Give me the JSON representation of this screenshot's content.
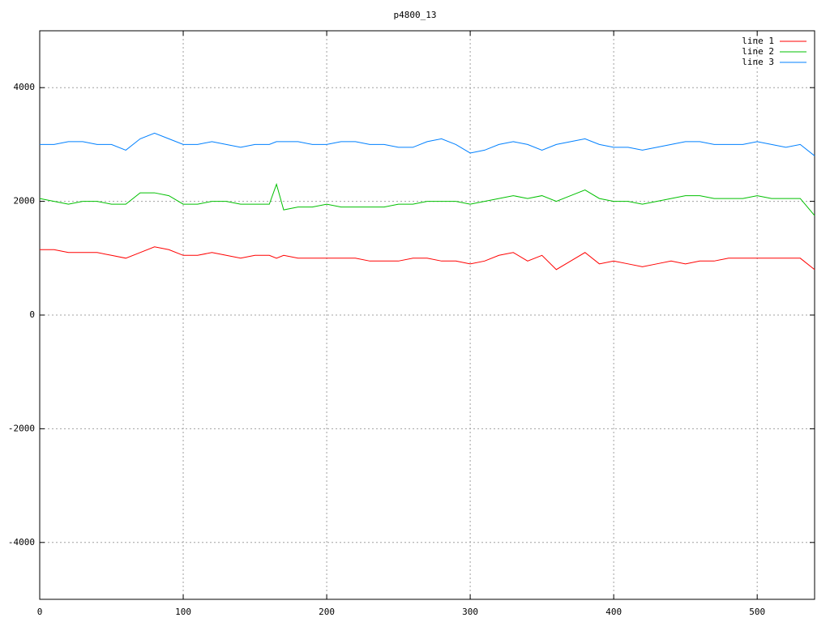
{
  "chart_data": {
    "type": "line",
    "title": "p4800_13",
    "x": [
      0,
      10,
      20,
      30,
      40,
      50,
      60,
      70,
      80,
      90,
      100,
      110,
      120,
      130,
      140,
      150,
      160,
      165,
      170,
      180,
      190,
      200,
      210,
      220,
      230,
      240,
      250,
      260,
      270,
      280,
      290,
      300,
      310,
      320,
      330,
      340,
      350,
      360,
      370,
      380,
      390,
      400,
      410,
      420,
      430,
      440,
      450,
      460,
      470,
      480,
      490,
      500,
      510,
      520,
      530,
      540
    ],
    "series": [
      {
        "name": "line 1",
        "color": "#ff0000",
        "values": [
          1150,
          1150,
          1100,
          1100,
          1100,
          1050,
          1000,
          1100,
          1200,
          1150,
          1050,
          1050,
          1100,
          1050,
          1000,
          1050,
          1050,
          1000,
          1050,
          1000,
          1000,
          1000,
          1000,
          1000,
          950,
          950,
          950,
          1000,
          1000,
          950,
          950,
          900,
          950,
          1050,
          1100,
          950,
          1050,
          800,
          950,
          1100,
          900,
          950,
          900,
          850,
          900,
          950,
          900,
          950,
          950,
          1000,
          1000,
          1000,
          1000,
          1000,
          1000,
          800
        ]
      },
      {
        "name": "line 2",
        "color": "#00c000",
        "values": [
          2050,
          2000,
          1950,
          2000,
          2000,
          1950,
          1950,
          2150,
          2150,
          2100,
          1950,
          1950,
          2000,
          2000,
          1950,
          1950,
          1950,
          2300,
          1850,
          1900,
          1900,
          1950,
          1900,
          1900,
          1900,
          1900,
          1950,
          1950,
          2000,
          2000,
          2000,
          1950,
          2000,
          2050,
          2100,
          2050,
          2100,
          2000,
          2100,
          2200,
          2050,
          2000,
          2000,
          1950,
          2000,
          2050,
          2100,
          2100,
          2050,
          2050,
          2050,
          2100,
          2050,
          2050,
          2050,
          1750
        ]
      },
      {
        "name": "line 3",
        "color": "#0080ff",
        "values": [
          3000,
          3000,
          3050,
          3050,
          3000,
          3000,
          2900,
          3100,
          3200,
          3100,
          3000,
          3000,
          3050,
          3000,
          2950,
          3000,
          3000,
          3050,
          3050,
          3050,
          3000,
          3000,
          3050,
          3050,
          3000,
          3000,
          2950,
          2950,
          3050,
          3100,
          3000,
          2850,
          2900,
          3000,
          3050,
          3000,
          2900,
          3000,
          3050,
          3100,
          3000,
          2950,
          2950,
          2900,
          2950,
          3000,
          3050,
          3050,
          3000,
          3000,
          3000,
          3050,
          3000,
          2950,
          3000,
          2800
        ]
      }
    ],
    "xlim": [
      0,
      540
    ],
    "xticks": [
      0,
      100,
      200,
      300,
      400,
      500
    ],
    "ylim": [
      -5000,
      5000
    ],
    "yticks": [
      -4000,
      -2000,
      0,
      2000,
      4000
    ],
    "grid": true,
    "legend": "top-right"
  }
}
